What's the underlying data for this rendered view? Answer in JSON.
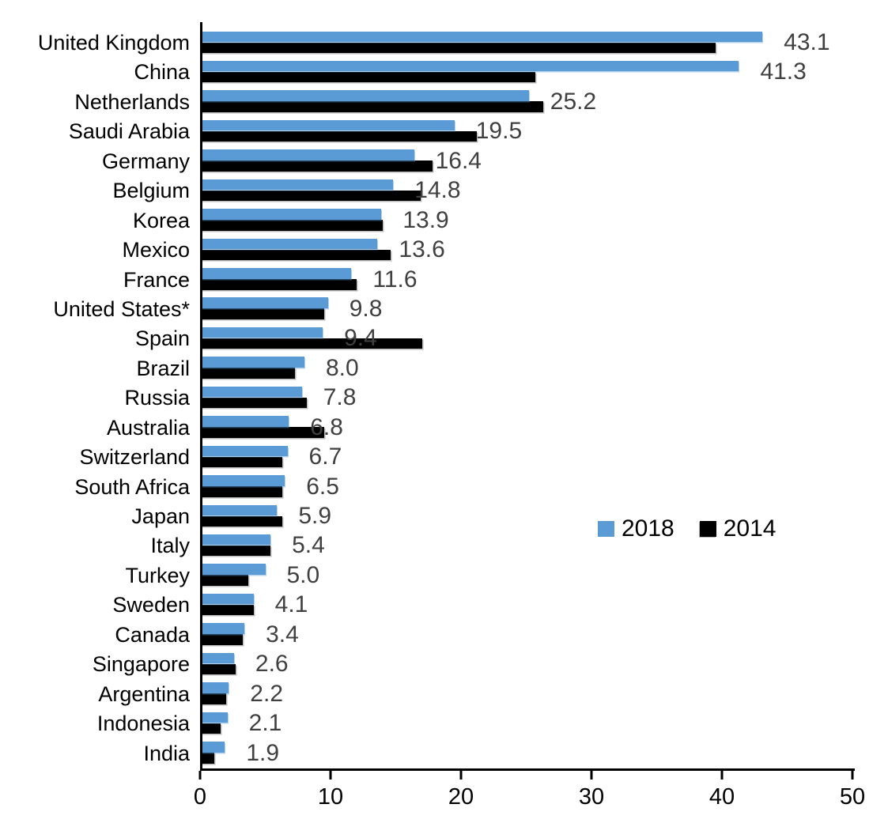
{
  "chart_data": {
    "type": "bar",
    "orientation": "horizontal",
    "title": "",
    "categories": [
      "United Kingdom",
      "China",
      "Netherlands",
      "Saudi Arabia",
      "Germany",
      "Belgium",
      "Korea",
      "Mexico",
      "France",
      "United States*",
      "Spain",
      "Brazil",
      "Russia",
      "Australia",
      "Switzerland",
      "South Africa",
      "Japan",
      "Italy",
      "Turkey",
      "Sweden",
      "Canada",
      "Singapore",
      "Argentina",
      "Indonesia",
      "India"
    ],
    "series": [
      {
        "name": "2018",
        "color": "#5B9BD5",
        "values": [
          43.1,
          41.3,
          25.2,
          19.5,
          16.4,
          14.8,
          13.9,
          13.6,
          11.6,
          9.8,
          9.4,
          8.0,
          7.8,
          6.8,
          6.7,
          6.5,
          5.9,
          5.4,
          5.0,
          4.1,
          3.4,
          2.6,
          2.2,
          2.1,
          1.9
        ],
        "data_labels": [
          "43.1",
          "41.3",
          "25.2",
          "19.5",
          "16.4",
          "14.8",
          "13.9",
          "13.6",
          "11.6",
          "9.8",
          "9.4",
          "8.0",
          "7.8",
          "6.8",
          "6.7",
          "6.5",
          "5.9",
          "5.4",
          "5.0",
          "4.1",
          "3.4",
          "2.6",
          "2.2",
          "2.1",
          "1.9"
        ]
      },
      {
        "name": "2014",
        "color": "#000000",
        "values": [
          39.5,
          25.7,
          26.3,
          21.2,
          17.8,
          16.9,
          14.0,
          14.6,
          12.0,
          9.5,
          17.0,
          7.3,
          8.2,
          9.5,
          6.3,
          6.3,
          6.3,
          5.4,
          3.7,
          4.1,
          3.3,
          2.7,
          2.0,
          1.6,
          1.1
        ]
      }
    ],
    "xlim": [
      0,
      50
    ],
    "x_ticks": [
      "0",
      "10",
      "20",
      "30",
      "40",
      "50"
    ],
    "grid": false,
    "legend_position": "middle-right",
    "value_label_color": "#404040",
    "axis_color": "#000000"
  }
}
